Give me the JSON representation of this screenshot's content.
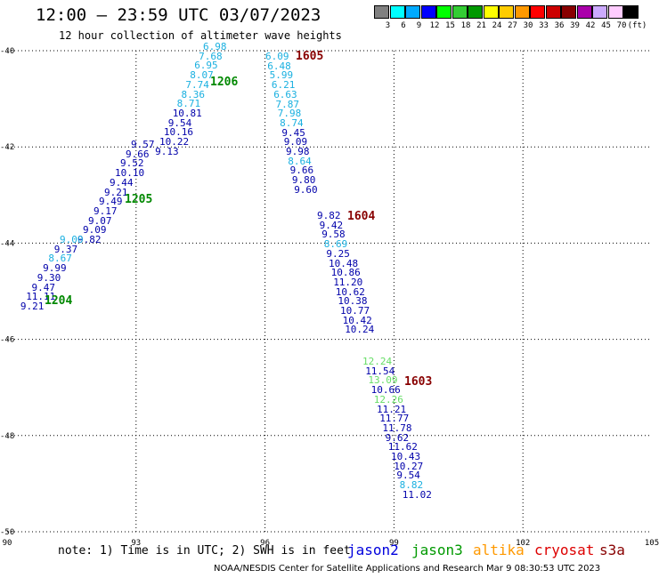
{
  "title": "12:00 — 23:59 UTC 03/07/2023",
  "subtitle": "12 hour collection of altimeter wave heights",
  "colorbar": {
    "colors": [
      "#808080",
      "#00ffff",
      "#00aaff",
      "#0000ff",
      "#00ff00",
      "#33cc33",
      "#009900",
      "#ffff00",
      "#ffcc00",
      "#ff9900",
      "#ff0000",
      "#cc0000",
      "#880000",
      "#aa00aa",
      "#ccaaff",
      "#ffccff",
      "#000000"
    ],
    "labels": [
      "3",
      "6",
      "9",
      "12",
      "15",
      "18",
      "21",
      "24",
      "27",
      "30",
      "33",
      "36",
      "39",
      "42",
      "45",
      "70",
      "(ft)"
    ]
  },
  "map": {
    "lon_ticks": [
      "90",
      "93",
      "96",
      "99",
      "102",
      "105"
    ],
    "lat_ticks": [
      "-40",
      "-42",
      "-44",
      "-46",
      "-48",
      "-50"
    ],
    "lon_range": [
      90,
      105
    ],
    "lat_range": [
      -50,
      -40
    ]
  },
  "tracks": [
    {
      "pass": "1206",
      "pass_color": "#008800",
      "points": [
        {
          "v": "6.98",
          "c": "#1ab0e0"
        },
        {
          "v": "7.68",
          "c": "#1ab0e0"
        },
        {
          "v": "6.95",
          "c": "#1ab0e0"
        },
        {
          "v": "8.07",
          "c": "#1ab0e0"
        },
        {
          "v": "7.74",
          "c": "#1ab0e0"
        },
        {
          "v": "8.36",
          "c": "#1ab0e0"
        },
        {
          "v": "8.71",
          "c": "#1ab0e0"
        },
        {
          "v": "10.81",
          "c": "#0000aa"
        },
        {
          "v": "9.54",
          "c": "#0000aa"
        },
        {
          "v": "10.16",
          "c": "#0000aa"
        },
        {
          "v": "10.22",
          "c": "#0000aa"
        },
        {
          "v": "9.13",
          "c": "#0000aa"
        }
      ]
    },
    {
      "pass": "1205",
      "pass_color": "#008800",
      "points": [
        {
          "v": "9.57",
          "c": "#0000aa"
        },
        {
          "v": "9.66",
          "c": "#0000aa"
        },
        {
          "v": "9.52",
          "c": "#0000aa"
        },
        {
          "v": "10.10",
          "c": "#0000aa"
        },
        {
          "v": "9.44",
          "c": "#0000aa"
        },
        {
          "v": "9.21",
          "c": "#0000aa"
        },
        {
          "v": "9.49",
          "c": "#0000aa"
        },
        {
          "v": "9.17",
          "c": "#0000aa"
        },
        {
          "v": "9.07",
          "c": "#0000aa"
        },
        {
          "v": "9.09",
          "c": "#0000aa"
        },
        {
          "v": "9.82",
          "c": "#0000aa"
        }
      ]
    },
    {
      "pass": "1204",
      "pass_color": "#008800",
      "points": [
        {
          "v": "9.00",
          "c": "#1ab0e0"
        },
        {
          "v": "9.37",
          "c": "#0000aa"
        },
        {
          "v": "8.67",
          "c": "#1ab0e0"
        },
        {
          "v": "9.99",
          "c": "#0000aa"
        },
        {
          "v": "9.30",
          "c": "#0000aa"
        },
        {
          "v": "9.47",
          "c": "#0000aa"
        },
        {
          "v": "11.11",
          "c": "#0000aa"
        },
        {
          "v": "9.21",
          "c": "#0000aa"
        }
      ]
    },
    {
      "pass": "1605",
      "pass_color": "#880000",
      "points": [
        {
          "v": "6.09",
          "c": "#1ab0e0"
        },
        {
          "v": "6.48",
          "c": "#1ab0e0"
        },
        {
          "v": "5.99",
          "c": "#1ab0e0"
        },
        {
          "v": "6.21",
          "c": "#1ab0e0"
        },
        {
          "v": "6.63",
          "c": "#1ab0e0"
        },
        {
          "v": "7.87",
          "c": "#1ab0e0"
        },
        {
          "v": "7.98",
          "c": "#1ab0e0"
        },
        {
          "v": "8.74",
          "c": "#1ab0e0"
        },
        {
          "v": "9.45",
          "c": "#0000aa"
        },
        {
          "v": "9.09",
          "c": "#0000aa"
        },
        {
          "v": "9.98",
          "c": "#0000aa"
        },
        {
          "v": "8.64",
          "c": "#1ab0e0"
        },
        {
          "v": "9.66",
          "c": "#0000aa"
        },
        {
          "v": "9.80",
          "c": "#0000aa"
        },
        {
          "v": "9.60",
          "c": "#0000aa"
        }
      ]
    },
    {
      "pass": "1604",
      "pass_color": "#880000",
      "points": [
        {
          "v": "9.82",
          "c": "#0000aa"
        },
        {
          "v": "9.42",
          "c": "#0000aa"
        },
        {
          "v": "9.58",
          "c": "#0000aa"
        },
        {
          "v": "8.69",
          "c": "#1ab0e0"
        },
        {
          "v": "9.25",
          "c": "#0000aa"
        },
        {
          "v": "10.48",
          "c": "#0000aa"
        },
        {
          "v": "10.86",
          "c": "#0000aa"
        },
        {
          "v": "11.20",
          "c": "#0000aa"
        },
        {
          "v": "10.62",
          "c": "#0000aa"
        },
        {
          "v": "10.38",
          "c": "#0000aa"
        },
        {
          "v": "10.77",
          "c": "#0000aa"
        },
        {
          "v": "10.42",
          "c": "#0000aa"
        },
        {
          "v": "10.24",
          "c": "#0000aa"
        }
      ]
    },
    {
      "pass": "1603",
      "pass_color": "#880000",
      "points": [
        {
          "v": "12.24",
          "c": "#66dd66"
        },
        {
          "v": "11.54",
          "c": "#0000aa"
        },
        {
          "v": "13.09",
          "c": "#66dd66"
        },
        {
          "v": "10.66",
          "c": "#0000aa"
        },
        {
          "v": "12.26",
          "c": "#66dd66"
        },
        {
          "v": "11.21",
          "c": "#0000aa"
        },
        {
          "v": "11.77",
          "c": "#0000aa"
        },
        {
          "v": "11.78",
          "c": "#0000aa"
        },
        {
          "v": "9.62",
          "c": "#0000aa"
        },
        {
          "v": "11.62",
          "c": "#0000aa"
        },
        {
          "v": "10.43",
          "c": "#0000aa"
        },
        {
          "v": "10.27",
          "c": "#0000aa"
        },
        {
          "v": "9.54",
          "c": "#0000aa"
        },
        {
          "v": "8.82",
          "c": "#1ab0e0"
        },
        {
          "v": "11.02",
          "c": "#0000aa"
        }
      ]
    }
  ],
  "note": "note: 1) Time is in UTC; 2) SWH is in feet",
  "satellites": [
    {
      "name": "jason2",
      "color": "#0000dd"
    },
    {
      "name": "jason3",
      "color": "#009900"
    },
    {
      "name": "altika",
      "color": "#ff9900"
    },
    {
      "name": "cryosat",
      "color": "#dd0000"
    },
    {
      "name": "s3a",
      "color": "#880000"
    }
  ],
  "credit": "NOAA/NESDIS Center for Satellite Applications and Research   Mar  9 08:30:53 UTC 2023"
}
